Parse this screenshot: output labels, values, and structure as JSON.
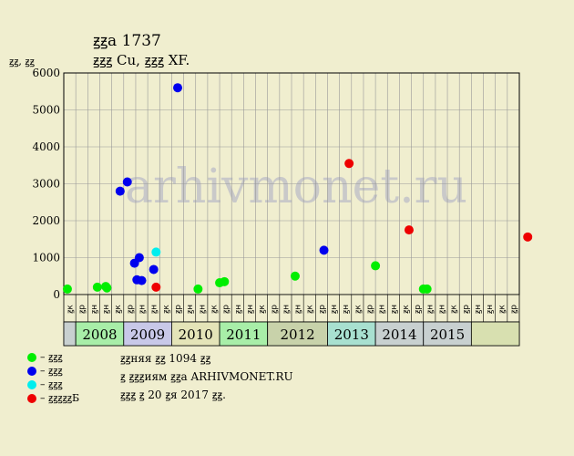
{
  "header": {
    "title": "ꙃꙃа 1737",
    "subtitle": "ꙃꙃꙃ Cu, ꙃꙃꙃ XF."
  },
  "chart_data": {
    "type": "scatter",
    "title": "ꙃꙃа 1737",
    "subtitle": "ꙃꙃꙃ Cu, ꙃꙃꙃ XF.",
    "ylabel": "ꙃꙃ, ꙃꙃ",
    "xlabel": "",
    "ylim": [
      0,
      6000
    ],
    "yticks": [
      0,
      1000,
      2000,
      3000,
      4000,
      5000,
      6000
    ],
    "grid": true,
    "watermark": "arhivmonet.ru",
    "period_labels": [
      "ꙃк",
      "ꙃр",
      "ꙃн",
      "ꙃн",
      "ꙃк",
      "ꙃр",
      "ꙃн",
      "ꙃн",
      "ꙃк",
      "ꙃр",
      "ꙃн",
      "ꙃн",
      "ꙃк",
      "ꙃр",
      "ꙃн",
      "ꙃн",
      "ꙃк",
      "ꙃр",
      "ꙃн",
      "ꙃн",
      "ꙃк",
      "ꙃр",
      "ꙃн",
      "ꙃн",
      "ꙃк",
      "ꙃр",
      "ꙃн",
      "ꙃн",
      "ꙃк",
      "ꙃр",
      "ꙃн",
      "ꙃн",
      "ꙃк",
      "ꙃр",
      "ꙃн",
      "ꙃн",
      "ꙃк",
      "ꙃр"
    ],
    "years": [
      {
        "label": "2008",
        "start": 1,
        "count": 4,
        "color": "#a8eea8"
      },
      {
        "label": "2009",
        "start": 5,
        "count": 4,
        "color": "#c8c8e8"
      },
      {
        "label": "2010",
        "start": 9,
        "count": 4,
        "color": "#e4e4b8"
      },
      {
        "label": "2011",
        "start": 13,
        "count": 4,
        "color": "#a8eea8"
      },
      {
        "label": "2012",
        "start": 17,
        "count": 5,
        "color": "#c8d2aa"
      },
      {
        "label": "2013",
        "start": 22,
        "count": 4,
        "color": "#a8e0d0"
      },
      {
        "label": "2014",
        "start": 26,
        "count": 4,
        "color": "#c8d0d0"
      },
      {
        "label": "2015",
        "start": 30,
        "count": 4,
        "color": "#c8d0d0"
      }
    ],
    "series": [
      {
        "name": "ꙃꙃꙃ",
        "color": "#00ee00",
        "points": [
          {
            "x": 0.3,
            "y": 150
          },
          {
            "x": 2.8,
            "y": 200
          },
          {
            "x": 3.5,
            "y": 220
          },
          {
            "x": 3.6,
            "y": 180
          },
          {
            "x": 11.2,
            "y": 150
          },
          {
            "x": 13.0,
            "y": 320
          },
          {
            "x": 13.4,
            "y": 350
          },
          {
            "x": 19.3,
            "y": 500
          },
          {
            "x": 26.0,
            "y": 780
          },
          {
            "x": 30.0,
            "y": 150
          },
          {
            "x": 30.3,
            "y": 150
          }
        ]
      },
      {
        "name": "ꙃꙃꙃ",
        "color": "#0000ee",
        "points": [
          {
            "x": 4.7,
            "y": 2800
          },
          {
            "x": 5.3,
            "y": 3050
          },
          {
            "x": 5.9,
            "y": 850
          },
          {
            "x": 6.1,
            "y": 400
          },
          {
            "x": 6.3,
            "y": 1000
          },
          {
            "x": 6.5,
            "y": 380
          },
          {
            "x": 7.5,
            "y": 680
          },
          {
            "x": 9.5,
            "y": 5600
          },
          {
            "x": 21.7,
            "y": 1200
          }
        ]
      },
      {
        "name": "ꙃꙃꙃ",
        "color": "#00eeee",
        "points": [
          {
            "x": 7.7,
            "y": 1150
          }
        ]
      },
      {
        "name": "ꙃꙃꙃꙃꙃБ",
        "color": "#ee0000",
        "points": [
          {
            "x": 7.7,
            "y": 200
          },
          {
            "x": 23.8,
            "y": 3550
          },
          {
            "x": 28.8,
            "y": 1750
          },
          {
            "x": 38.7,
            "y": 1560
          }
        ]
      }
    ]
  },
  "legend": [
    {
      "label": "– ꙃꙃꙃ",
      "color": "#00ee00"
    },
    {
      "label": "– ꙃꙃꙃ",
      "color": "#0000ee"
    },
    {
      "label": "– ꙃꙃꙃ",
      "color": "#00eeee"
    },
    {
      "label": "– ꙃꙃꙃꙃꙃБ",
      "color": "#ee0000"
    }
  ],
  "notes": {
    "line1": "ꙃꙃняя ꙃꙃ 1094 ꙃꙃ",
    "line2": "ꙃ ꙃꙃꙃиям ꙃꙃа ARHIVMONET.RU",
    "line3": "ꙃꙃꙃ ꙃ 20 ꙃя 2017 ꙃꙃ."
  }
}
